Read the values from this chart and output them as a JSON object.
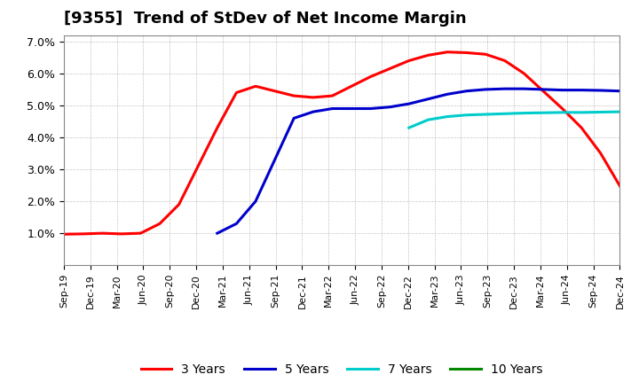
{
  "title": "[9355]  Trend of StDev of Net Income Margin",
  "title_fontsize": 13,
  "background_color": "#ffffff",
  "grid_color": "#aaaaaa",
  "ylim": [
    0.0,
    0.072
  ],
  "yticks": [
    0.01,
    0.02,
    0.03,
    0.04,
    0.05,
    0.06,
    0.07
  ],
  "ytick_labels": [
    "1.0%",
    "2.0%",
    "3.0%",
    "4.0%",
    "5.0%",
    "6.0%",
    "7.0%"
  ],
  "xtick_labels": [
    "Sep-19",
    "Dec-19",
    "Mar-20",
    "Jun-20",
    "Sep-20",
    "Dec-20",
    "Mar-21",
    "Jun-21",
    "Sep-21",
    "Dec-21",
    "Mar-22",
    "Jun-22",
    "Sep-22",
    "Dec-22",
    "Mar-23",
    "Jun-23",
    "Sep-23",
    "Dec-23",
    "Mar-24",
    "Jun-24",
    "Sep-24",
    "Dec-24"
  ],
  "line_colors": {
    "3y": "#ff0000",
    "5y": "#0000cc",
    "7y": "#00cccc",
    "10y": "#008800"
  },
  "legend_labels": [
    "3 Years",
    "5 Years",
    "7 Years",
    "10 Years"
  ],
  "line_width": 2.2,
  "series_3y": [
    0.0097,
    0.0098,
    0.01,
    0.0098,
    0.01,
    0.013,
    0.019,
    0.031,
    0.043,
    0.054,
    0.056,
    0.0545,
    0.053,
    0.0525,
    0.053,
    0.056,
    0.059,
    0.0615,
    0.064,
    0.0657,
    0.0667,
    0.0665,
    0.066,
    0.064,
    0.06,
    0.0545,
    0.049,
    0.043,
    0.035,
    0.0248
  ],
  "series_5y": [
    null,
    null,
    null,
    null,
    null,
    null,
    null,
    null,
    0.01,
    0.013,
    0.02,
    0.033,
    0.046,
    0.048,
    0.049,
    0.049,
    0.049,
    0.0495,
    0.0505,
    0.052,
    0.0535,
    0.0545,
    0.055,
    0.0552,
    0.0552,
    0.055,
    0.0548,
    0.0548,
    0.0547,
    0.0545
  ],
  "series_7y": [
    null,
    null,
    null,
    null,
    null,
    null,
    null,
    null,
    null,
    null,
    null,
    null,
    null,
    null,
    null,
    null,
    null,
    null,
    0.043,
    0.0455,
    0.0465,
    0.047,
    0.0472,
    0.0474,
    0.0476,
    0.0477,
    0.0478,
    0.0478,
    0.0479,
    0.048
  ],
  "series_10y": [
    null,
    null,
    null,
    null,
    null,
    null,
    null,
    null,
    null,
    null,
    null,
    null,
    null,
    null,
    null,
    null,
    null,
    null,
    null,
    null,
    null,
    null,
    null,
    null,
    null,
    null,
    null,
    null,
    null,
    null
  ]
}
